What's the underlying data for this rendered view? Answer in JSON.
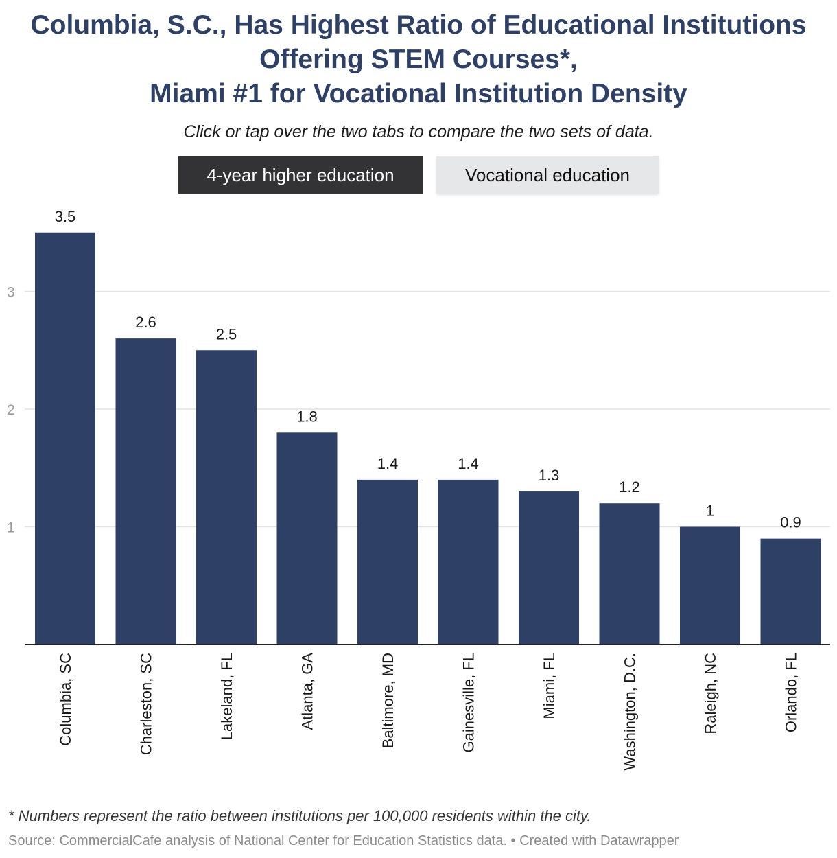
{
  "title_lines": [
    "Columbia, S.C., Has Highest Ratio of Educational Institutions",
    "Offering STEM Courses*,",
    "Miami #1 for Vocational Institution Density"
  ],
  "subtitle": "Click or tap over the two tabs to compare the two sets of data.",
  "tabs": [
    {
      "label": "4-year higher education",
      "active": true
    },
    {
      "label": "Vocational education",
      "active": false
    }
  ],
  "chart_data": {
    "type": "bar",
    "categories": [
      "Columbia, SC",
      "Charleston, SC",
      "Lakeland, FL",
      "Atlanta, GA",
      "Baltimore, MD",
      "Gainesville, FL",
      "Miami, FL",
      "Washington, D.C.",
      "Raleigh, NC",
      "Orlando, FL"
    ],
    "values": [
      3.5,
      2.6,
      2.5,
      1.8,
      1.4,
      1.4,
      1.3,
      1.2,
      1,
      0.9
    ],
    "value_labels": [
      "3.5",
      "2.6",
      "2.5",
      "1.8",
      "1.4",
      "1.4",
      "1.3",
      "1.2",
      "1",
      "0.9"
    ],
    "yticks": [
      "1",
      "2",
      "3"
    ],
    "ylim": [
      0,
      3.5
    ],
    "grid": true,
    "bar_color": "#2e4066"
  },
  "footnote": "* Numbers represent the ratio between institutions per 100,000 residents within the city.",
  "source": "Source: CommercialCafe analysis of National Center for Education Statistics data. • Created with Datawrapper",
  "colors": {
    "title": "#2e4066",
    "bar": "#2e4066",
    "tab_active_bg": "#333336",
    "tab_inactive_bg": "#e6e7e8"
  }
}
